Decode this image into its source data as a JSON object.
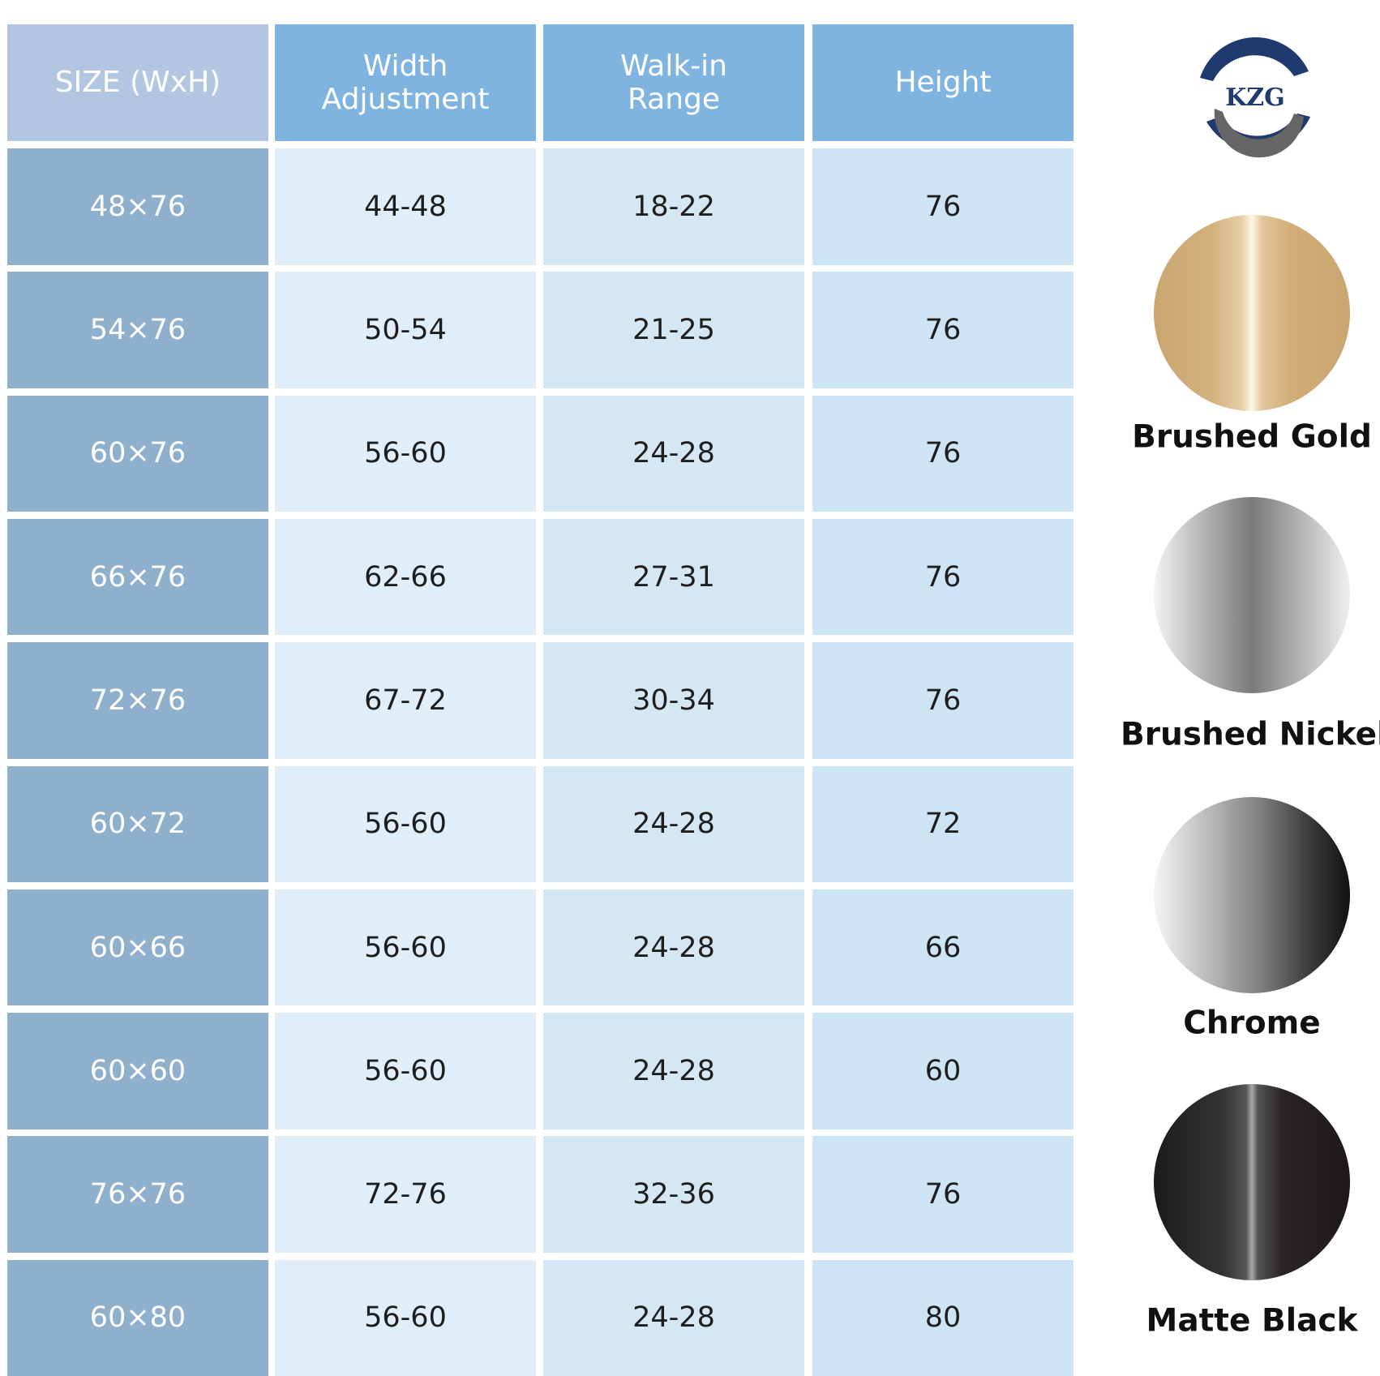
{
  "logo": "KZG",
  "table": {
    "header": [
      "SIZE (WxH)",
      "Width Adjustment",
      "Walk-in Range",
      "Height"
    ],
    "rows": [
      [
        "48×76",
        "44-48",
        "18-22",
        "76"
      ],
      [
        "54×76",
        "50-54",
        "21-25",
        "76"
      ],
      [
        "60×76",
        "56-60",
        "24-28",
        "76"
      ],
      [
        "66×76",
        "62-66",
        "27-31",
        "76"
      ],
      [
        "72×76",
        "67-72",
        "30-34",
        "76"
      ],
      [
        "60×72",
        "56-60",
        "24-28",
        "72"
      ],
      [
        "60×66",
        "56-60",
        "24-28",
        "66"
      ],
      [
        "60×60",
        "56-60",
        "24-28",
        "60"
      ],
      [
        "76×76",
        "72-76",
        "32-36",
        "76"
      ],
      [
        "60×80",
        "56-60",
        "24-28",
        "80"
      ]
    ]
  },
  "finishes": [
    "Brushed Gold",
    "Brushed Nickel",
    "Chrome",
    "Matte Black"
  ]
}
